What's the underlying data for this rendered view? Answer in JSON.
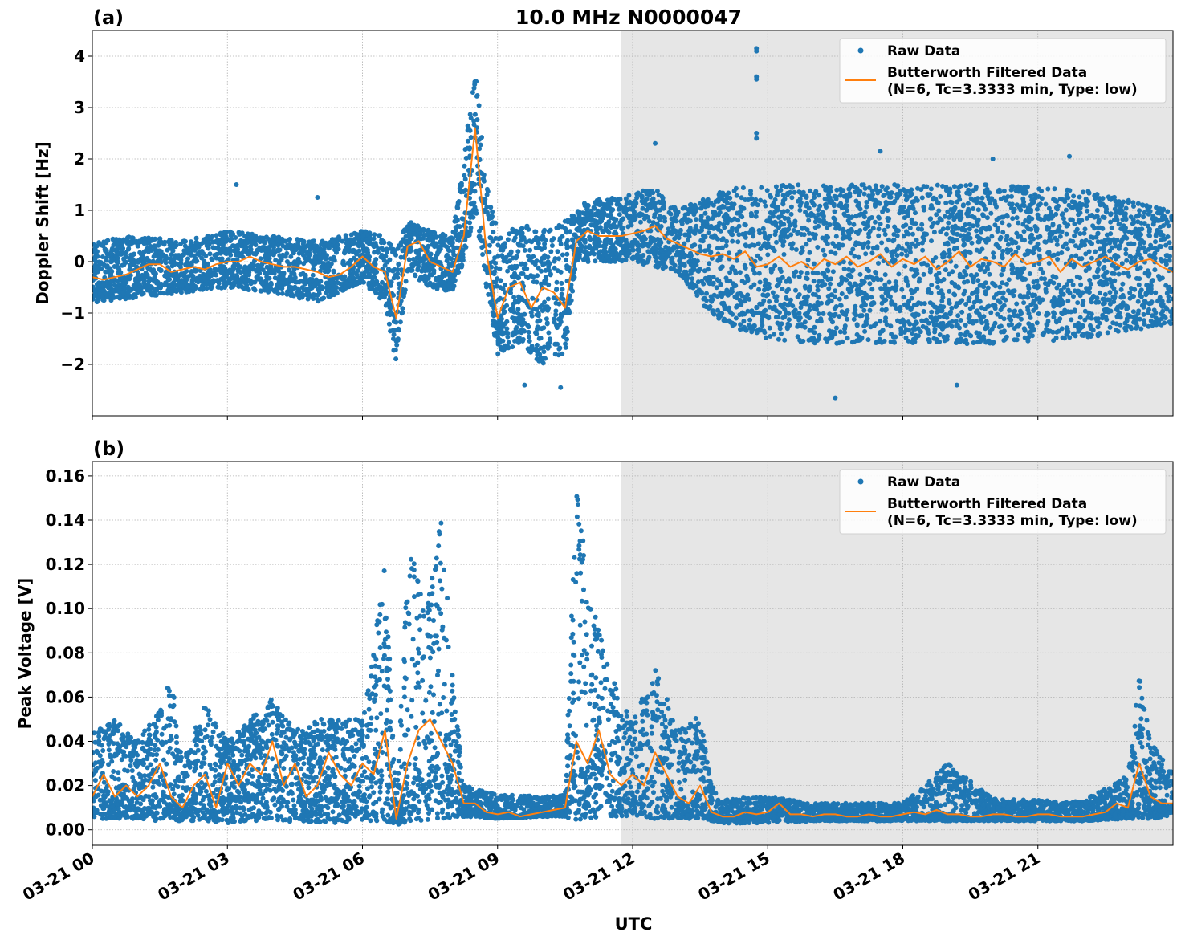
{
  "title": "10.0 MHz N0000047",
  "xlabel": "UTC",
  "colors": {
    "raw": "#1f77b4",
    "filtered": "#ff7f0e",
    "shade": "#e6e6e6",
    "grid": "#b0b0b0"
  },
  "x_ticks": [
    {
      "hour": 0,
      "label": "03-21 00"
    },
    {
      "hour": 3,
      "label": "03-21 03"
    },
    {
      "hour": 6,
      "label": "03-21 06"
    },
    {
      "hour": 9,
      "label": "03-21 09"
    },
    {
      "hour": 12,
      "label": "03-21 12"
    },
    {
      "hour": 15,
      "label": "03-21 15"
    },
    {
      "hour": 18,
      "label": "03-21 18"
    },
    {
      "hour": 21,
      "label": "03-21 21"
    }
  ],
  "legend": {
    "raw_label": "Raw Data",
    "filtered_label": "Butterworth Filtered Data",
    "filtered_params": "(N=6, Tc=3.3333 min, Type: low)",
    "placement": "upper-right"
  },
  "chart_data": [
    {
      "type": "scatter+line",
      "panel_label": "(a)",
      "ylabel": "Doppler Shift [Hz]",
      "xlim_hours": [
        0,
        24
      ],
      "ylim": [
        -3.0,
        4.5
      ],
      "grid": true,
      "y_ticks": [
        {
          "v": -2,
          "label": "−2"
        },
        {
          "v": -1,
          "label": "−1"
        },
        {
          "v": 0,
          "label": "0"
        },
        {
          "v": 1,
          "label": "1"
        },
        {
          "v": 2,
          "label": "2"
        },
        {
          "v": 3,
          "label": "3"
        },
        {
          "v": 4,
          "label": "4"
        }
      ],
      "shaded_region_hours": [
        11.75,
        24
      ],
      "filtered": {
        "step_hours": 0.25,
        "values": [
          -0.3,
          -0.35,
          -0.3,
          -0.25,
          -0.15,
          -0.05,
          -0.05,
          -0.2,
          -0.15,
          -0.1,
          -0.15,
          -0.05,
          0.0,
          0.0,
          0.1,
          0.0,
          -0.05,
          -0.1,
          -0.1,
          -0.15,
          -0.2,
          -0.3,
          -0.25,
          -0.1,
          0.1,
          -0.1,
          -0.2,
          -1.1,
          0.3,
          0.4,
          0.0,
          -0.1,
          -0.2,
          0.5,
          2.6,
          0.2,
          -1.1,
          -0.5,
          -0.4,
          -0.9,
          -0.5,
          -0.6,
          -0.9,
          0.4,
          0.6,
          0.5,
          0.5,
          0.5,
          0.55,
          0.6,
          0.7,
          0.45,
          0.35,
          0.25,
          0.15,
          0.1,
          0.15,
          0.05,
          0.2,
          -0.1,
          -0.05,
          0.1,
          -0.1,
          0.0,
          -0.15,
          0.05,
          -0.05,
          0.1,
          -0.1,
          0.0,
          0.15,
          -0.1,
          0.05,
          -0.05,
          0.1,
          -0.15,
          0.0,
          0.2,
          -0.1,
          0.05,
          0.0,
          -0.1,
          0.15,
          -0.05,
          0.0,
          0.1,
          -0.2,
          0.05,
          -0.1,
          0.0,
          0.1,
          -0.05,
          -0.15,
          0.0,
          0.05,
          -0.1,
          -0.2
        ]
      },
      "raw_envelope": {
        "hours": [
          0,
          1,
          2,
          3,
          4,
          5,
          6,
          6.5,
          6.75,
          7,
          7.5,
          8,
          8.25,
          8.5,
          8.75,
          9,
          9.5,
          10,
          10.5,
          10.75,
          11,
          12,
          12.5,
          13,
          13.5,
          14,
          15,
          16,
          18,
          20,
          22,
          24
        ],
        "lower": [
          -0.8,
          -0.7,
          -0.6,
          -0.5,
          -0.6,
          -0.8,
          -0.4,
          -0.8,
          -2.0,
          -0.2,
          -0.5,
          -0.6,
          0.0,
          1.0,
          -0.5,
          -1.8,
          -1.6,
          -2.0,
          -1.8,
          0.0,
          0.0,
          0.0,
          -0.1,
          -0.2,
          -0.8,
          -1.2,
          -1.5,
          -1.6,
          -1.6,
          -1.6,
          -1.5,
          -1.2
        ],
        "upper": [
          0.4,
          0.5,
          0.4,
          0.6,
          0.5,
          0.4,
          0.6,
          0.5,
          0.2,
          0.8,
          0.6,
          0.5,
          2.0,
          3.9,
          1.5,
          0.6,
          0.8,
          0.6,
          0.8,
          1.0,
          1.2,
          1.3,
          1.5,
          1.0,
          1.2,
          1.4,
          1.5,
          1.5,
          1.5,
          1.5,
          1.4,
          1.0
        ]
      },
      "raw_outliers": [
        [
          3.2,
          1.5
        ],
        [
          5.0,
          1.25
        ],
        [
          14.75,
          4.15
        ],
        [
          14.75,
          4.1
        ],
        [
          14.75,
          3.6
        ],
        [
          14.75,
          3.55
        ],
        [
          14.75,
          2.5
        ],
        [
          14.75,
          2.4
        ],
        [
          12.5,
          2.3
        ],
        [
          16.5,
          -2.65
        ],
        [
          19.2,
          -2.4
        ],
        [
          17.5,
          2.15
        ],
        [
          20.0,
          2.0
        ],
        [
          21.7,
          2.05
        ],
        [
          9.6,
          -2.4
        ],
        [
          10.4,
          -2.45
        ]
      ]
    },
    {
      "type": "scatter+line",
      "panel_label": "(b)",
      "ylabel": "Peak Voltage [V]",
      "xlim_hours": [
        0,
        24
      ],
      "ylim": [
        -0.007,
        0.1665
      ],
      "grid": true,
      "y_ticks": [
        {
          "v": 0,
          "label": "0.00"
        },
        {
          "v": 0.02,
          "label": "0.02"
        },
        {
          "v": 0.04,
          "label": "0.04"
        },
        {
          "v": 0.06,
          "label": "0.06"
        },
        {
          "v": 0.08,
          "label": "0.08"
        },
        {
          "v": 0.1,
          "label": "0.10"
        },
        {
          "v": 0.12,
          "label": "0.12"
        },
        {
          "v": 0.14,
          "label": "0.14"
        },
        {
          "v": 0.16,
          "label": "0.16"
        }
      ],
      "shaded_region_hours": [
        11.75,
        24
      ],
      "filtered": {
        "step_hours": 0.25,
        "values": [
          0.015,
          0.025,
          0.015,
          0.02,
          0.015,
          0.02,
          0.03,
          0.015,
          0.01,
          0.02,
          0.025,
          0.01,
          0.03,
          0.02,
          0.03,
          0.025,
          0.04,
          0.02,
          0.03,
          0.015,
          0.02,
          0.035,
          0.025,
          0.02,
          0.03,
          0.025,
          0.045,
          0.005,
          0.03,
          0.045,
          0.05,
          0.04,
          0.03,
          0.012,
          0.012,
          0.008,
          0.007,
          0.008,
          0.006,
          0.007,
          0.008,
          0.009,
          0.01,
          0.04,
          0.03,
          0.045,
          0.025,
          0.02,
          0.025,
          0.02,
          0.035,
          0.025,
          0.015,
          0.012,
          0.02,
          0.008,
          0.006,
          0.006,
          0.008,
          0.007,
          0.008,
          0.012,
          0.007,
          0.007,
          0.006,
          0.007,
          0.007,
          0.006,
          0.006,
          0.007,
          0.006,
          0.006,
          0.007,
          0.008,
          0.007,
          0.009,
          0.007,
          0.007,
          0.006,
          0.006,
          0.007,
          0.007,
          0.006,
          0.006,
          0.007,
          0.007,
          0.006,
          0.006,
          0.006,
          0.007,
          0.008,
          0.012,
          0.01,
          0.03,
          0.015,
          0.012,
          0.012
        ]
      },
      "raw_envelope": {
        "hours": [
          0,
          0.5,
          1,
          1.5,
          1.75,
          2,
          2.5,
          3,
          3.5,
          4,
          4.5,
          5,
          5.5,
          6,
          6.5,
          6.75,
          7,
          7.5,
          7.75,
          8,
          8.25,
          9,
          10,
          10.5,
          10.75,
          11,
          11.5,
          12,
          12.5,
          13,
          13.5,
          13.75,
          14,
          15,
          16,
          18,
          19,
          20,
          22,
          23,
          23.25,
          23.5,
          24
        ],
        "lower": [
          0.005,
          0.005,
          0.005,
          0.004,
          0.004,
          0.004,
          0.004,
          0.003,
          0.004,
          0.003,
          0.004,
          0.003,
          0.003,
          0.004,
          0.004,
          0.002,
          0.003,
          0.004,
          0.005,
          0.005,
          0.006,
          0.005,
          0.006,
          0.006,
          0.004,
          0.005,
          0.006,
          0.006,
          0.005,
          0.005,
          0.005,
          0.004,
          0.003,
          0.003,
          0.004,
          0.004,
          0.004,
          0.004,
          0.004,
          0.005,
          0.005,
          0.005,
          0.006
        ],
        "upper": [
          0.045,
          0.05,
          0.04,
          0.055,
          0.073,
          0.03,
          0.057,
          0.04,
          0.05,
          0.06,
          0.045,
          0.05,
          0.05,
          0.05,
          0.123,
          0.01,
          0.126,
          0.11,
          0.145,
          0.07,
          0.02,
          0.016,
          0.015,
          0.016,
          0.158,
          0.117,
          0.07,
          0.05,
          0.075,
          0.045,
          0.052,
          0.02,
          0.014,
          0.015,
          0.012,
          0.012,
          0.03,
          0.014,
          0.013,
          0.025,
          0.07,
          0.04,
          0.025
        ]
      },
      "raw_outliers": []
    }
  ]
}
